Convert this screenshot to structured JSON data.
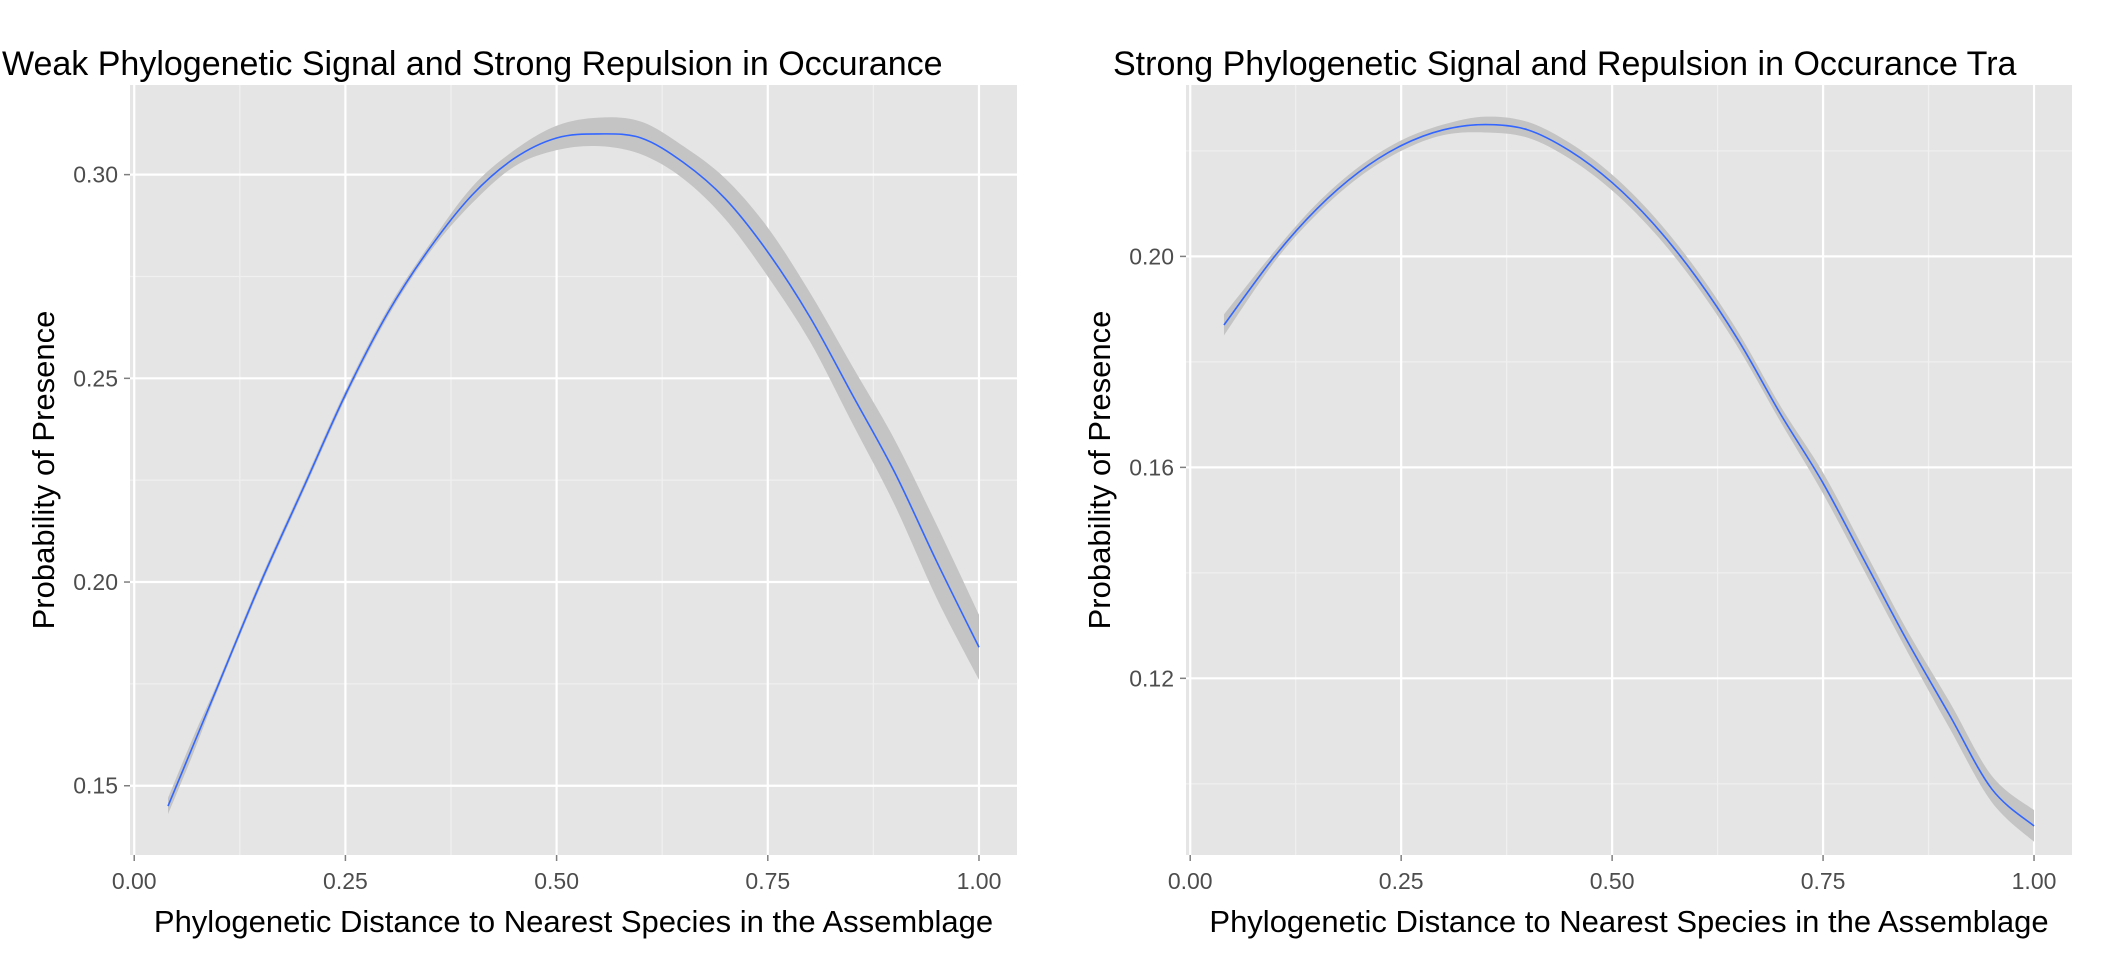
{
  "colors": {
    "panel_bg": "#E5E5E5",
    "grid_major": "#FFFFFF",
    "grid_minor": "#F0F0F0",
    "line": "#3366FF",
    "ribbon": "#C4C4C4",
    "tick_text": "#4D4D4D"
  },
  "chart_data": [
    {
      "type": "line",
      "title": "Weak Phylogenetic Signal and Strong Repulsion in Occurance",
      "xlabel": "Phylogenetic Distance to Nearest Species in the Assemblage",
      "ylabel": "Probability of Presence",
      "xlim": [
        -0.005,
        1.045
      ],
      "ylim": [
        0.133,
        0.322
      ],
      "x_ticks": [
        0.0,
        0.25,
        0.5,
        0.75,
        1.0
      ],
      "x_tick_labels": [
        "0.00",
        "0.25",
        "0.50",
        "0.75",
        "1.00"
      ],
      "y_ticks": [
        0.15,
        0.2,
        0.25,
        0.3
      ],
      "y_tick_labels": [
        "0.15",
        "0.20",
        "0.25",
        "0.30"
      ],
      "grid": true,
      "series": [
        {
          "x": [
            0.04,
            0.07,
            0.1,
            0.15,
            0.2,
            0.25,
            0.3,
            0.35,
            0.4,
            0.45,
            0.5,
            0.55,
            0.6,
            0.65,
            0.7,
            0.75,
            0.8,
            0.85,
            0.9,
            0.95,
            1.0
          ],
          "y": [
            0.145,
            0.16,
            0.175,
            0.2,
            0.223,
            0.246,
            0.266,
            0.282,
            0.295,
            0.304,
            0.309,
            0.31,
            0.309,
            0.303,
            0.294,
            0.281,
            0.265,
            0.246,
            0.227,
            0.205,
            0.184
          ],
          "ymin": [
            0.143,
            0.158,
            0.174,
            0.199,
            0.222,
            0.245,
            0.265,
            0.281,
            0.293,
            0.302,
            0.306,
            0.307,
            0.305,
            0.299,
            0.289,
            0.275,
            0.259,
            0.239,
            0.219,
            0.196,
            0.176
          ],
          "ymax": [
            0.147,
            0.162,
            0.176,
            0.201,
            0.224,
            0.247,
            0.267,
            0.283,
            0.297,
            0.306,
            0.312,
            0.314,
            0.313,
            0.307,
            0.299,
            0.287,
            0.271,
            0.253,
            0.235,
            0.214,
            0.192
          ]
        }
      ]
    },
    {
      "type": "line",
      "title": "Strong Phylogenetic Signal and Repulsion in Occurance Tra",
      "xlabel": "Phylogenetic Distance to Nearest Species in the Assemblage",
      "ylabel": "Probability of Presence",
      "xlim": [
        -0.005,
        1.045
      ],
      "ylim": [
        0.0865,
        0.2325
      ],
      "x_ticks": [
        0.0,
        0.25,
        0.5,
        0.75,
        1.0
      ],
      "x_tick_labels": [
        "0.00",
        "0.25",
        "0.50",
        "0.75",
        "1.00"
      ],
      "y_ticks": [
        0.12,
        0.16,
        0.2
      ],
      "y_tick_labels": [
        "0.12",
        "0.16",
        "0.20"
      ],
      "grid": true,
      "series": [
        {
          "x": [
            0.04,
            0.1,
            0.15,
            0.2,
            0.25,
            0.3,
            0.35,
            0.4,
            0.45,
            0.5,
            0.55,
            0.6,
            0.65,
            0.7,
            0.75,
            0.8,
            0.85,
            0.9,
            0.95,
            1.0
          ],
          "y": [
            0.187,
            0.2,
            0.209,
            0.216,
            0.221,
            0.224,
            0.225,
            0.224,
            0.22,
            0.214,
            0.206,
            0.196,
            0.184,
            0.17,
            0.157,
            0.142,
            0.127,
            0.113,
            0.099,
            0.092
          ],
          "ymin": [
            0.185,
            0.199,
            0.208,
            0.215,
            0.22,
            0.223,
            0.2235,
            0.2225,
            0.2185,
            0.2125,
            0.2045,
            0.1945,
            0.1825,
            0.1685,
            0.155,
            0.14,
            0.125,
            0.1105,
            0.0965,
            0.089
          ],
          "ymax": [
            0.189,
            0.201,
            0.21,
            0.217,
            0.222,
            0.225,
            0.2265,
            0.2255,
            0.2215,
            0.2155,
            0.2075,
            0.1975,
            0.1855,
            0.1715,
            0.159,
            0.144,
            0.129,
            0.1155,
            0.1015,
            0.095
          ]
        }
      ]
    }
  ]
}
